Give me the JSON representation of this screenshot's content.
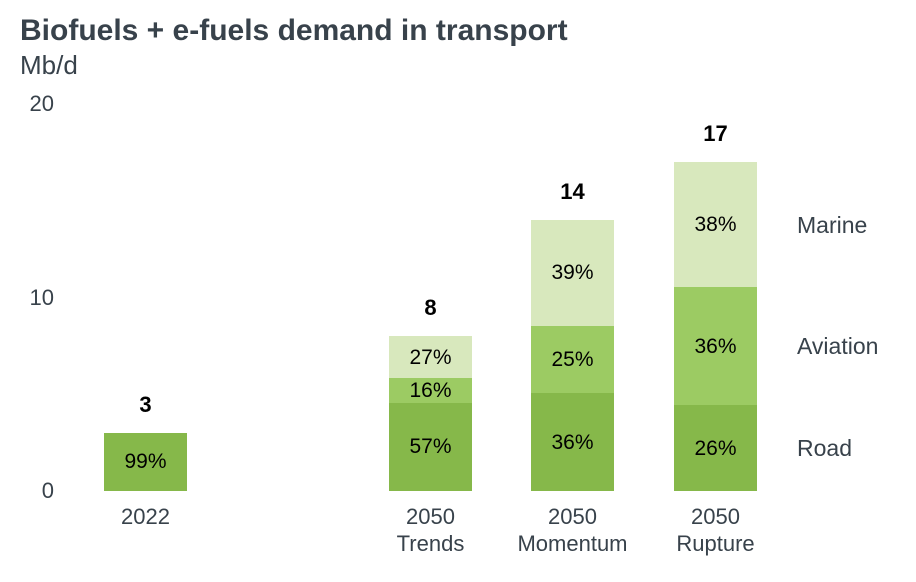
{
  "header": {
    "title": "Biofuels + e-fuels demand in transport",
    "unit": "Mb/d"
  },
  "colors": {
    "background": "#ffffff",
    "heading_text": "#38424b",
    "axis_text": "#38424b",
    "value_text": "#000000",
    "road": "#86b84a",
    "aviation": "#9ccb63",
    "marine": "#d8e8bd"
  },
  "chart_data": {
    "type": "bar",
    "variant": "stacked",
    "title": "Biofuels + e-fuels demand in transport",
    "unit": "Mb/d",
    "ylim": [
      0,
      20
    ],
    "yticks": [
      20,
      10,
      0
    ],
    "grid": false,
    "legend_position": "right",
    "legend": [
      "Marine",
      "Aviation",
      "Road"
    ],
    "categories": [
      "2022",
      "2050 Trends",
      "2050 Momentum",
      "2050 Rupture"
    ],
    "category_label_lines": [
      [
        "2022"
      ],
      [
        "2050",
        "Trends"
      ],
      [
        "2050",
        "Momentum"
      ],
      [
        "2050",
        "Rupture"
      ]
    ],
    "totals": [
      3,
      8,
      14,
      17
    ],
    "series": [
      {
        "name": "Road",
        "color_key": "road",
        "pct": [
          99,
          57,
          36,
          26
        ]
      },
      {
        "name": "Aviation",
        "color_key": "aviation",
        "pct": [
          0,
          16,
          25,
          36
        ]
      },
      {
        "name": "Marine",
        "color_key": "marine",
        "pct": [
          0,
          27,
          39,
          38
        ]
      }
    ]
  }
}
